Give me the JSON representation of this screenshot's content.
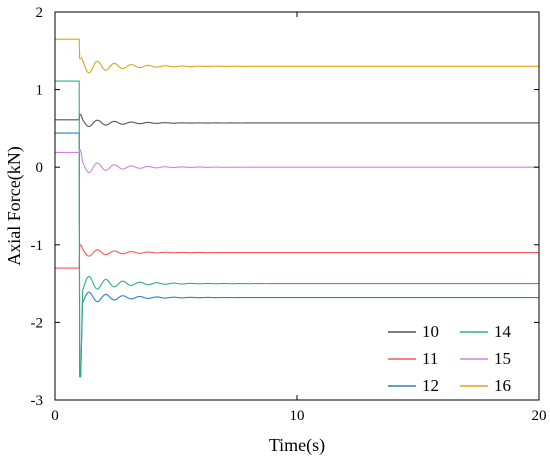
{
  "chart_data": {
    "type": "line",
    "title": "",
    "xlabel": "Time(s)",
    "ylabel": "Axial Force(kN)",
    "xlim": [
      0,
      20
    ],
    "ylim": [
      -3,
      2
    ],
    "xticks": [
      0,
      10,
      20
    ],
    "yticks": [
      -3,
      -2,
      -1,
      0,
      1,
      2
    ],
    "grid": false,
    "legend_position": "bottom-right",
    "series": [
      {
        "name": "10",
        "color": "#555555",
        "initial": 0.61,
        "peak": 0.68,
        "final": 0.57,
        "amplitude": 0.06
      },
      {
        "name": "11",
        "color": "#f0585a",
        "initial": -1.3,
        "peak": -1.0,
        "final": -1.1,
        "amplitude": 0.06
      },
      {
        "name": "12",
        "color": "#2e7fc0",
        "initial": 0.44,
        "peak": -2.7,
        "final": -1.68,
        "amplitude": 0.09
      },
      {
        "name": "14",
        "color": "#2bb27a",
        "initial": 1.11,
        "peak": -2.7,
        "final": -1.5,
        "amplitude": 0.12
      },
      {
        "name": "15",
        "color": "#cc84e0",
        "initial": 0.19,
        "peak": 0.22,
        "final": 0.0,
        "amplitude": 0.09
      },
      {
        "name": "16",
        "color": "#e0a21a",
        "initial": 1.65,
        "peak": 1.4,
        "final": 1.3,
        "amplitude": 0.11
      }
    ],
    "event_time": 1.0,
    "oscillation_period": 0.7,
    "decay_time": 1.3
  }
}
